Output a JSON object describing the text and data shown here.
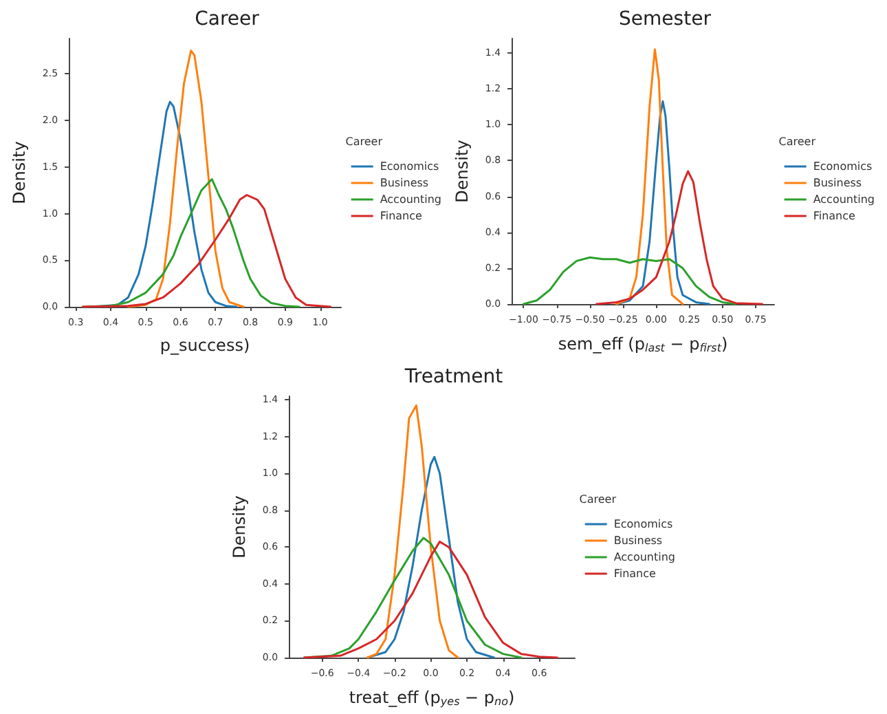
{
  "chart_data": [
    {
      "type": "line",
      "title": "Career",
      "xlabel": "p_success)",
      "ylabel": "Density",
      "legend_title": "Career",
      "legend": "right",
      "grid": false,
      "marker": "none",
      "line_style": "solid",
      "xlim": [
        0.28,
        1.06
      ],
      "xticks": [
        0.3,
        0.4,
        0.5,
        0.6,
        0.7,
        0.8,
        0.9,
        {
          "value": 1,
          "label": "1.0"
        }
      ],
      "ylim": [
        0,
        2.88
      ],
      "yticks": [
        {
          "value": 0,
          "label": "0.0"
        },
        0.5,
        {
          "value": 1,
          "label": "1.0"
        },
        1.5,
        {
          "value": 2,
          "label": "2.0"
        },
        2.5
      ],
      "series": [
        {
          "name": "Economics",
          "color": "#1f77b4",
          "x": [
            0.35,
            0.42,
            0.45,
            0.48,
            0.5,
            0.52,
            0.54,
            0.56,
            0.57,
            0.58,
            0.6,
            0.62,
            0.64,
            0.66,
            0.68,
            0.7,
            0.73,
            0.76
          ],
          "values": [
            0,
            0.02,
            0.1,
            0.35,
            0.65,
            1.1,
            1.6,
            2.1,
            2.2,
            2.15,
            1.8,
            1.3,
            0.8,
            0.4,
            0.15,
            0.05,
            0.01,
            0
          ]
        },
        {
          "name": "Business",
          "color": "#ff7f0e",
          "x": [
            0.45,
            0.5,
            0.53,
            0.55,
            0.57,
            0.59,
            0.61,
            0.63,
            0.64,
            0.66,
            0.68,
            0.7,
            0.72,
            0.74,
            0.78
          ],
          "values": [
            0,
            0.02,
            0.08,
            0.3,
            0.9,
            1.7,
            2.4,
            2.75,
            2.7,
            2.2,
            1.4,
            0.6,
            0.2,
            0.05,
            0
          ]
        },
        {
          "name": "Accounting",
          "color": "#2ca02c",
          "x": [
            0.32,
            0.4,
            0.45,
            0.5,
            0.55,
            0.58,
            0.6,
            0.63,
            0.66,
            0.69,
            0.71,
            0.73,
            0.75,
            0.78,
            0.8,
            0.83,
            0.86,
            0.9,
            0.94
          ],
          "values": [
            0,
            0.01,
            0.05,
            0.15,
            0.35,
            0.55,
            0.75,
            1,
            1.25,
            1.37,
            1.2,
            1.05,
            0.85,
            0.5,
            0.3,
            0.12,
            0.04,
            0.01,
            0
          ]
        },
        {
          "name": "Finance",
          "color": "#d62728",
          "x": [
            0.32,
            0.45,
            0.5,
            0.55,
            0.6,
            0.65,
            0.7,
            0.74,
            0.77,
            0.79,
            0.82,
            0.84,
            0.86,
            0.88,
            0.9,
            0.93,
            0.96,
            1.03
          ],
          "values": [
            0,
            0.01,
            0.03,
            0.1,
            0.25,
            0.45,
            0.72,
            0.95,
            1.15,
            1.2,
            1.15,
            1.05,
            0.8,
            0.55,
            0.3,
            0.1,
            0.02,
            0
          ]
        }
      ]
    },
    {
      "type": "line",
      "title": "Semester",
      "xlabel": "sem_eff (p$_{last}$ − p$_{first}$)",
      "ylabel": "Density",
      "legend_title": "Career",
      "legend": "right",
      "grid": false,
      "marker": "none",
      "line_style": "solid",
      "xlim": [
        -1.09,
        0.89
      ],
      "xticks": [
        {
          "value": -1,
          "label": "−1.00"
        },
        {
          "value": -0.75,
          "label": "−0.75"
        },
        {
          "value": -0.5,
          "label": "−0.50"
        },
        {
          "value": -0.25,
          "label": "−0.25"
        },
        {
          "value": 0,
          "label": "0.00"
        },
        0.25,
        {
          "value": 0.5,
          "label": "0.50"
        },
        0.75
      ],
      "ylim": [
        0,
        1.48
      ],
      "yticks": [
        {
          "value": 0,
          "label": "0.0"
        },
        0.2,
        0.4,
        0.6,
        0.8,
        {
          "value": 1,
          "label": "1.0"
        },
        1.2,
        1.4
      ],
      "series": [
        {
          "name": "Economics",
          "color": "#1f77b4",
          "x": [
            -0.3,
            -0.2,
            -0.1,
            -0.05,
            0,
            0.03,
            0.05,
            0.07,
            0.1,
            0.13,
            0.16,
            0.2,
            0.3,
            0.4
          ],
          "values": [
            0,
            0.02,
            0.1,
            0.35,
            0.8,
            1.05,
            1.13,
            1.05,
            0.75,
            0.4,
            0.15,
            0.05,
            0.01,
            0
          ]
        },
        {
          "name": "Business",
          "color": "#ff7f0e",
          "x": [
            -0.3,
            -0.2,
            -0.15,
            -0.1,
            -0.05,
            -0.01,
            0.02,
            0.05,
            0.08,
            0.12,
            0.2
          ],
          "values": [
            0,
            0.03,
            0.15,
            0.5,
            1.1,
            1.42,
            1.25,
            0.75,
            0.3,
            0.05,
            0
          ]
        },
        {
          "name": "Accounting",
          "color": "#2ca02c",
          "x": [
            -1,
            -0.9,
            -0.8,
            -0.7,
            -0.6,
            -0.5,
            -0.4,
            -0.3,
            -0.2,
            -0.1,
            0,
            0.1,
            0.2,
            0.3,
            0.4,
            0.5,
            0.6
          ],
          "values": [
            0,
            0.02,
            0.08,
            0.18,
            0.24,
            0.26,
            0.25,
            0.25,
            0.23,
            0.25,
            0.24,
            0.25,
            0.2,
            0.1,
            0.04,
            0.01,
            0
          ]
        },
        {
          "name": "Finance",
          "color": "#d62728",
          "x": [
            -0.45,
            -0.3,
            -0.2,
            -0.1,
            0,
            0.1,
            0.15,
            0.2,
            0.24,
            0.28,
            0.33,
            0.38,
            0.43,
            0.5,
            0.6,
            0.8
          ],
          "values": [
            0,
            0.01,
            0.03,
            0.08,
            0.15,
            0.35,
            0.5,
            0.67,
            0.74,
            0.68,
            0.45,
            0.25,
            0.1,
            0.03,
            0.005,
            0
          ]
        }
      ]
    },
    {
      "type": "line",
      "title": "Treatment",
      "xlabel": "treat_eff (p$_{yes}$ − p$_{no}$)",
      "ylabel": "Density",
      "legend_title": "Career",
      "legend": "right",
      "grid": false,
      "marker": "none",
      "line_style": "solid",
      "xlim": [
        -0.785,
        0.797
      ],
      "xticks": [
        {
          "value": -0.6,
          "label": "−0.6"
        },
        {
          "value": -0.4,
          "label": "−0.4"
        },
        {
          "value": -0.2,
          "label": "−0.2"
        },
        {
          "value": 0,
          "label": "0.0"
        },
        0.2,
        0.4,
        0.6
      ],
      "ylim": [
        0,
        1.42
      ],
      "yticks": [
        {
          "value": 0,
          "label": "0.0"
        },
        0.2,
        0.4,
        0.6,
        0.8,
        {
          "value": 1,
          "label": "1.0"
        },
        1.2,
        1.4
      ],
      "series": [
        {
          "name": "Economics",
          "color": "#1f77b4",
          "x": [
            -0.35,
            -0.25,
            -0.2,
            -0.15,
            -0.1,
            -0.05,
            0,
            0.02,
            0.05,
            0.1,
            0.15,
            0.2,
            0.25,
            0.35
          ],
          "values": [
            0,
            0.03,
            0.1,
            0.25,
            0.5,
            0.8,
            1.05,
            1.09,
            1,
            0.65,
            0.3,
            0.1,
            0.03,
            0
          ]
        },
        {
          "name": "Business",
          "color": "#ff7f0e",
          "x": [
            -0.35,
            -0.3,
            -0.25,
            -0.2,
            -0.15,
            -0.12,
            -0.08,
            -0.05,
            0,
            0.05,
            0.1,
            0.15
          ],
          "values": [
            0,
            0.02,
            0.1,
            0.45,
            0.95,
            1.3,
            1.37,
            1.15,
            0.6,
            0.2,
            0.04,
            0
          ]
        },
        {
          "name": "Accounting",
          "color": "#2ca02c",
          "x": [
            -0.7,
            -0.55,
            -0.45,
            -0.4,
            -0.3,
            -0.2,
            -0.1,
            -0.04,
            0,
            0.1,
            0.2,
            0.3,
            0.4,
            0.5
          ],
          "values": [
            0,
            0.01,
            0.05,
            0.1,
            0.25,
            0.42,
            0.58,
            0.65,
            0.62,
            0.45,
            0.2,
            0.07,
            0.02,
            0
          ]
        },
        {
          "name": "Finance",
          "color": "#d62728",
          "x": [
            -0.7,
            -0.5,
            -0.4,
            -0.3,
            -0.2,
            -0.1,
            0,
            0.05,
            0.1,
            0.2,
            0.3,
            0.4,
            0.5,
            0.6,
            0.7
          ],
          "values": [
            0,
            0.01,
            0.05,
            0.1,
            0.2,
            0.35,
            0.55,
            0.63,
            0.6,
            0.45,
            0.22,
            0.08,
            0.02,
            0.005,
            0
          ]
        }
      ]
    }
  ]
}
